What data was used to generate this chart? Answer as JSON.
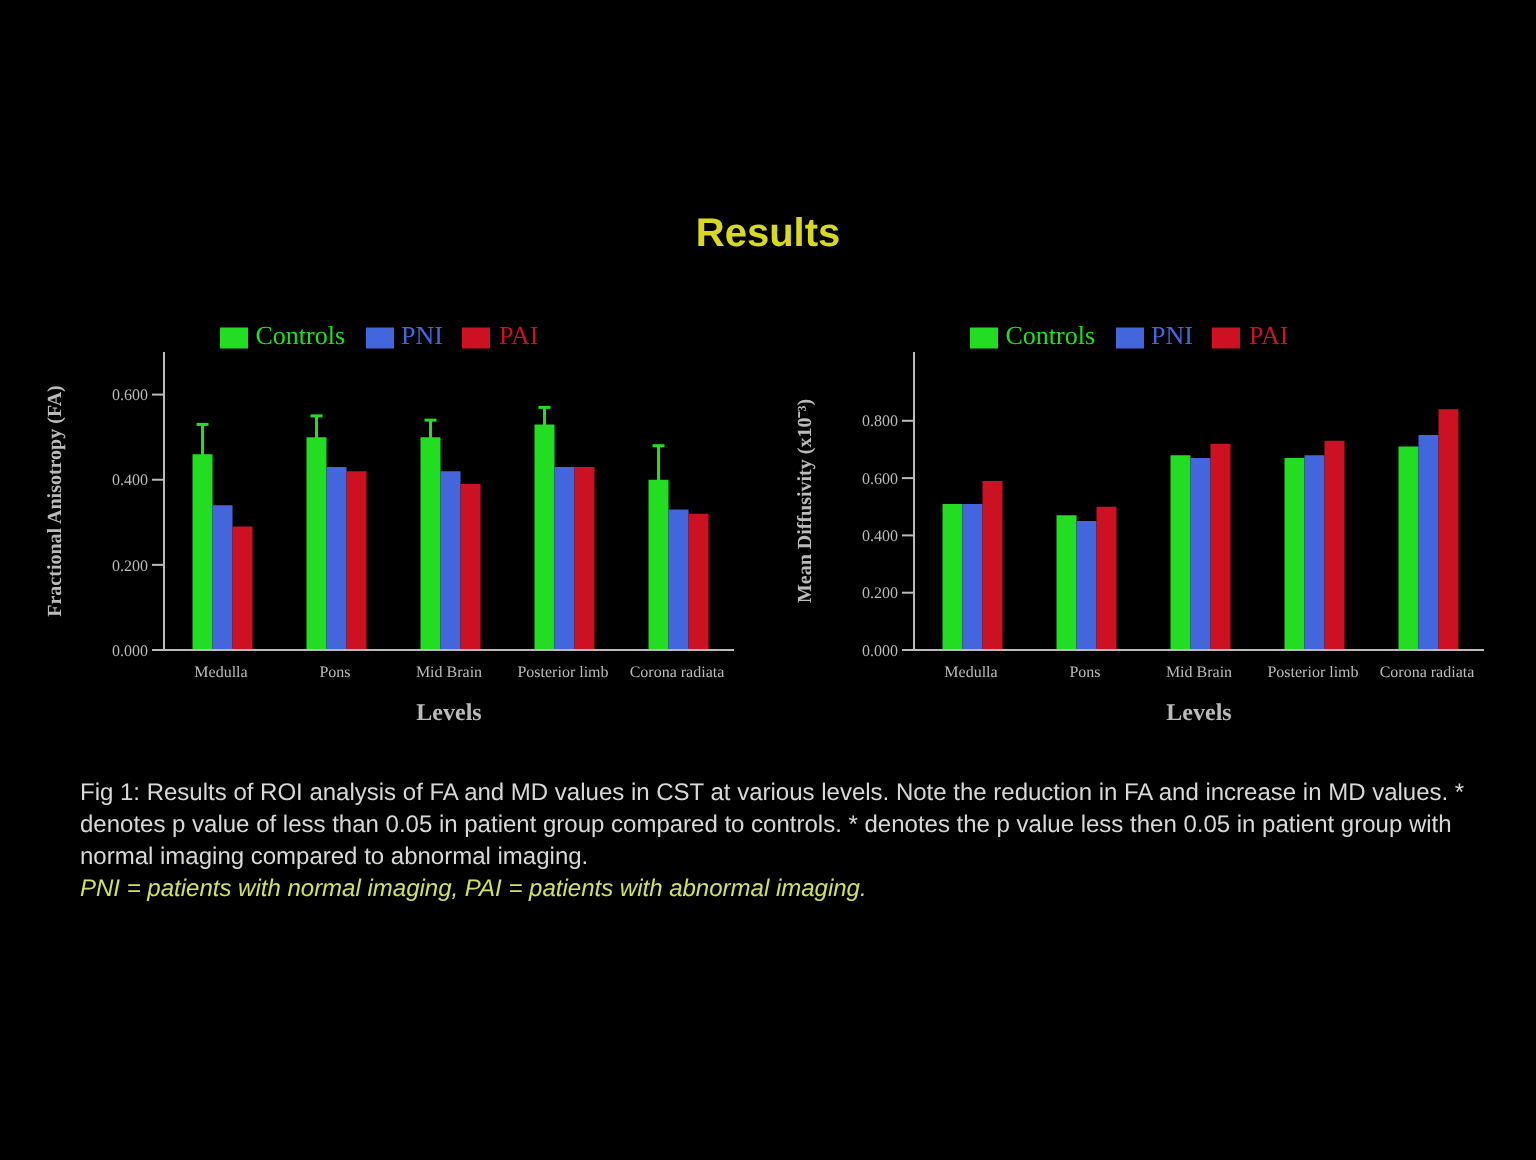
{
  "chart_data": [
    {
      "type": "other",
      "title": "Results"
    },
    {
      "type": "bar",
      "xlabel": "Levels",
      "ylabel": "Fractional Anisotropy (FA)",
      "categories": [
        "Medulla",
        "Pons",
        "Mid Brain",
        "Posterior limb",
        "Corona radiata"
      ],
      "series": [
        {
          "name": "Controls",
          "color": "#22dd22",
          "values": [
            0.46,
            0.5,
            0.5,
            0.53,
            0.4
          ],
          "errors": [
            0.07,
            0.05,
            0.04,
            0.04,
            0.08
          ]
        },
        {
          "name": "PNI",
          "color": "#4466dd",
          "values": [
            0.34,
            0.43,
            0.42,
            0.43,
            0.33
          ]
        },
        {
          "name": "PAI",
          "color": "#cc1122",
          "values": [
            0.29,
            0.42,
            0.39,
            0.43,
            0.32
          ]
        }
      ],
      "ylim": [
        0,
        0.7
      ],
      "yticks": [
        {
          "value": 0,
          "label": "0.000"
        },
        {
          "value": 0.2,
          "label": "0.200"
        },
        {
          "value": 0.4,
          "label": "0.400"
        },
        {
          "value": 0.6,
          "label": "0.600"
        }
      ],
      "legend": "top"
    },
    {
      "type": "bar",
      "xlabel": "Levels",
      "ylabel": "Mean Diffusivity (x10⁻³)",
      "categories": [
        "Medulla",
        "Pons",
        "Mid Brain",
        "Posterior limb",
        "Corona radiata"
      ],
      "series": [
        {
          "name": "Controls",
          "color": "#22dd22",
          "values": [
            0.51,
            0.47,
            0.68,
            0.67,
            0.71
          ]
        },
        {
          "name": "PNI",
          "color": "#4466dd",
          "values": [
            0.51,
            0.45,
            0.67,
            0.68,
            0.75
          ]
        },
        {
          "name": "PAI",
          "color": "#cc1122",
          "values": [
            0.59,
            0.5,
            0.72,
            0.73,
            0.84
          ]
        }
      ],
      "ylim": [
        0,
        1.04
      ],
      "yticks": [
        {
          "value": 0,
          "label": "0.000"
        },
        {
          "value": 0.2,
          "label": "0.200"
        },
        {
          "value": 0.4,
          "label": "0.400"
        },
        {
          "value": 0.6,
          "label": "0.600"
        },
        {
          "value": 0.8,
          "label": "0.800"
        }
      ],
      "legend": "top"
    },
    {
      "type": "other",
      "annotations": [
        "Fig 1: Results of ROI analysis of FA and MD values in CST at various levels. Note the reduction in FA and increase in MD values. * denotes p value of less than 0.05 in patient group compared to controls. * denotes the p value less then 0.05 in patient group with normal imaging compared to abnormal imaging.",
        "PNI = patients with normal imaging, PAI = patients with abnormal imaging."
      ]
    }
  ]
}
